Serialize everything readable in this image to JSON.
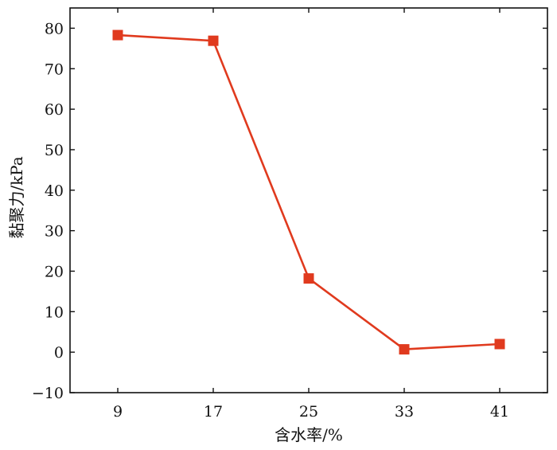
{
  "chart_data": {
    "type": "line",
    "title": "",
    "xlabel": "含水率/%",
    "ylabel": "黏聚力/kPa",
    "categories": [
      "9",
      "17",
      "25",
      "33",
      "41"
    ],
    "x": [
      9,
      17,
      25,
      33,
      41
    ],
    "y_ticks": [
      "−10",
      "0",
      "10",
      "20",
      "30",
      "40",
      "50",
      "60",
      "70",
      "80"
    ],
    "ylim": [
      -10,
      85
    ],
    "grid": false,
    "legend": "none",
    "series": [
      {
        "values": [
          78.3,
          76.9,
          18.2,
          0.7,
          2.0
        ],
        "color": "#e03a1e",
        "marker": "square"
      }
    ]
  }
}
